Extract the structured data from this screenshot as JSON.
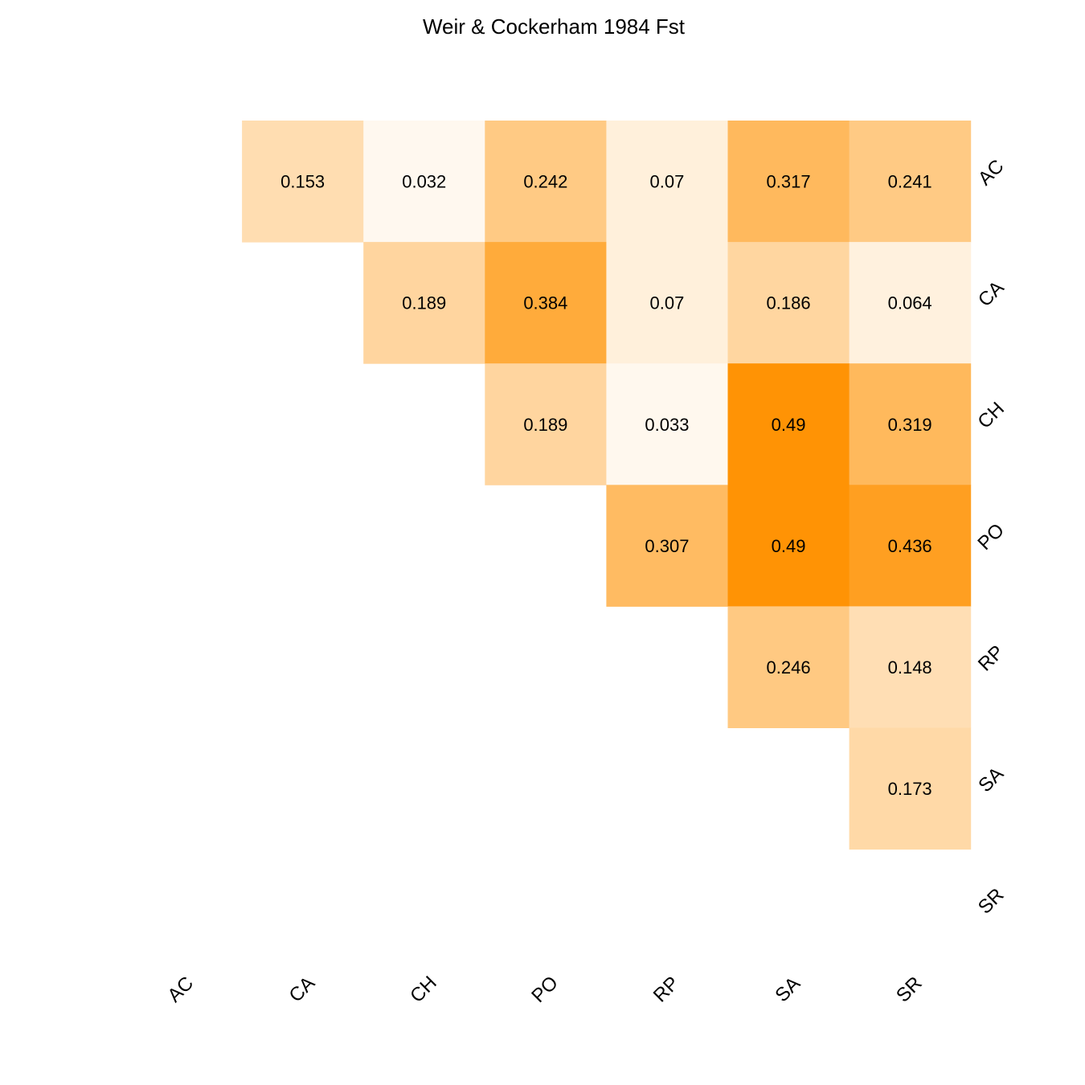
{
  "chart_data": {
    "type": "heatmap",
    "title": "Weir & Cockerham 1984 Fst",
    "xlabel": "",
    "ylabel": "",
    "x_categories": [
      "AC",
      "CA",
      "CH",
      "PO",
      "RP",
      "SA",
      "SR"
    ],
    "y_categories": [
      "AC",
      "CA",
      "CH",
      "PO",
      "RP",
      "SA",
      "SR"
    ],
    "color_low": "#ffffff",
    "color_high": "#ff9100",
    "value_range": [
      0,
      0.5
    ],
    "grid": false,
    "legend": "none",
    "cells": [
      {
        "x": "CA",
        "y": "AC",
        "value": 0.153
      },
      {
        "x": "CH",
        "y": "AC",
        "value": 0.032
      },
      {
        "x": "PO",
        "y": "AC",
        "value": 0.242
      },
      {
        "x": "RP",
        "y": "AC",
        "value": 0.07
      },
      {
        "x": "SA",
        "y": "AC",
        "value": 0.317
      },
      {
        "x": "SR",
        "y": "AC",
        "value": 0.241
      },
      {
        "x": "CH",
        "y": "CA",
        "value": 0.189
      },
      {
        "x": "PO",
        "y": "CA",
        "value": 0.384
      },
      {
        "x": "RP",
        "y": "CA",
        "value": 0.07
      },
      {
        "x": "SA",
        "y": "CA",
        "value": 0.186
      },
      {
        "x": "SR",
        "y": "CA",
        "value": 0.064
      },
      {
        "x": "PO",
        "y": "CH",
        "value": 0.189
      },
      {
        "x": "RP",
        "y": "CH",
        "value": 0.033
      },
      {
        "x": "SA",
        "y": "CH",
        "value": 0.49
      },
      {
        "x": "SR",
        "y": "CH",
        "value": 0.319
      },
      {
        "x": "RP",
        "y": "PO",
        "value": 0.307
      },
      {
        "x": "SA",
        "y": "PO",
        "value": 0.49
      },
      {
        "x": "SR",
        "y": "PO",
        "value": 0.436
      },
      {
        "x": "SA",
        "y": "RP",
        "value": 0.246
      },
      {
        "x": "SR",
        "y": "RP",
        "value": 0.148
      },
      {
        "x": "SR",
        "y": "SA",
        "value": 0.173
      }
    ]
  }
}
